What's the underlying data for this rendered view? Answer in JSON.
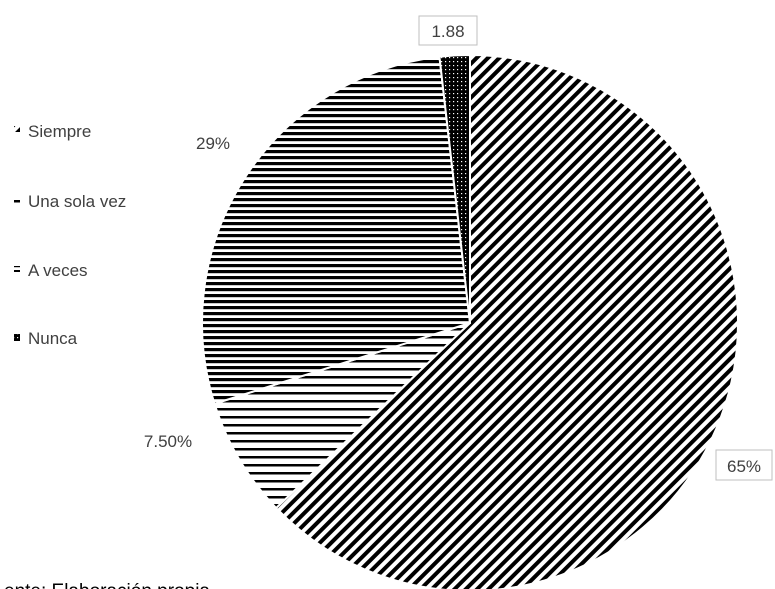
{
  "chart_data": {
    "type": "pie",
    "title": "",
    "categories": [
      "Siempre",
      "Una sola vez",
      "A veces",
      "Nunca"
    ],
    "values": [
      65,
      7.5,
      29,
      1.88
    ],
    "data_labels": [
      "65%",
      "7.50%",
      "29%",
      "1.88"
    ],
    "patterns": [
      "diagonal-stripes",
      "sparse-horizontal-stripes",
      "dense-horizontal-stripes",
      "dotted-dark"
    ],
    "legend_position": "left",
    "grid": false
  },
  "footer": {
    "source_text": "ente: Elaboración propia"
  }
}
